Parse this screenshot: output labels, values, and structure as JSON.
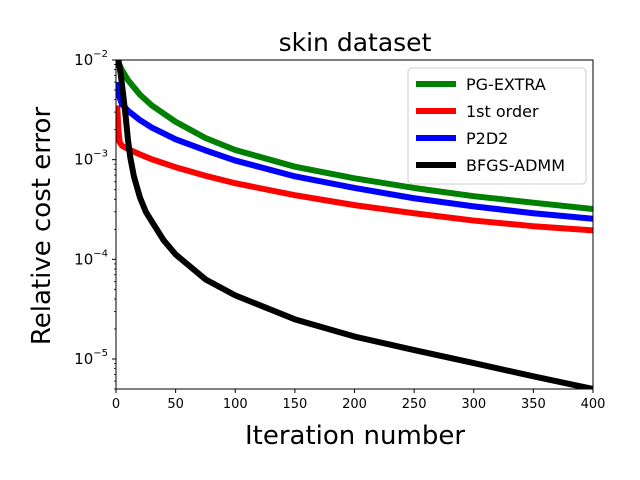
{
  "chart_data": {
    "type": "line",
    "title": "skin dataset",
    "xlabel": "Iteration number",
    "ylabel": "Relative cost error",
    "yscale": "log",
    "xlim": [
      0,
      400
    ],
    "ylim": [
      5e-06,
      0.01
    ],
    "xticks": [
      0,
      50,
      100,
      150,
      200,
      250,
      300,
      350,
      400
    ],
    "xtick_labels": [
      "0",
      "50",
      "100",
      "150",
      "200",
      "250",
      "300",
      "350",
      "400"
    ],
    "yticks": [
      1e-05,
      0.0001,
      0.001,
      0.01
    ],
    "ytick_labels": [
      {
        "base": "10",
        "exp": "−5"
      },
      {
        "base": "10",
        "exp": "−4"
      },
      {
        "base": "10",
        "exp": "−3"
      },
      {
        "base": "10",
        "exp": "−2"
      }
    ],
    "legend_position": "top-right",
    "series": [
      {
        "name": "PG-EXTRA",
        "color": "#008000",
        "x": [
          1,
          5,
          10,
          20,
          30,
          50,
          75,
          100,
          150,
          200,
          250,
          300,
          350,
          400
        ],
        "y": [
          0.01,
          0.0079,
          0.0063,
          0.0045,
          0.0035,
          0.0024,
          0.00165,
          0.00125,
          0.00085,
          0.00065,
          0.00052,
          0.00043,
          0.00037,
          0.00032
        ]
      },
      {
        "name": "1st order",
        "color": "#ff0000",
        "x": [
          1,
          2,
          3,
          5,
          10,
          20,
          30,
          50,
          75,
          100,
          150,
          200,
          250,
          300,
          350,
          400
        ],
        "y": [
          0.0035,
          0.002,
          0.0015,
          0.00138,
          0.00128,
          0.00113,
          0.00101,
          0.00084,
          0.00069,
          0.00058,
          0.00044,
          0.00035,
          0.00029,
          0.000245,
          0.000215,
          0.000195
        ]
      },
      {
        "name": "P2D2",
        "color": "#0000ff",
        "x": [
          1,
          3,
          5,
          10,
          20,
          30,
          50,
          75,
          100,
          150,
          200,
          250,
          300,
          350,
          400
        ],
        "y": [
          0.006,
          0.0042,
          0.0036,
          0.0031,
          0.0025,
          0.0021,
          0.0016,
          0.00124,
          0.00098,
          0.00068,
          0.00052,
          0.00041,
          0.00034,
          0.00029,
          0.000255
        ]
      },
      {
        "name": "BFGS-ADMM",
        "color": "#000000",
        "x": [
          2,
          4,
          6,
          8,
          10,
          12,
          15,
          20,
          25,
          30,
          40,
          50,
          75,
          100,
          150,
          200,
          250,
          300,
          350,
          400
        ],
        "y": [
          0.01,
          0.0072,
          0.0045,
          0.0028,
          0.0016,
          0.00105,
          0.00068,
          0.00042,
          0.0003,
          0.00024,
          0.000155,
          0.000112,
          6.3e-05,
          4.35e-05,
          2.5e-05,
          1.68e-05,
          1.23e-05,
          9.1e-06,
          6.7e-06,
          5e-06
        ]
      }
    ]
  }
}
